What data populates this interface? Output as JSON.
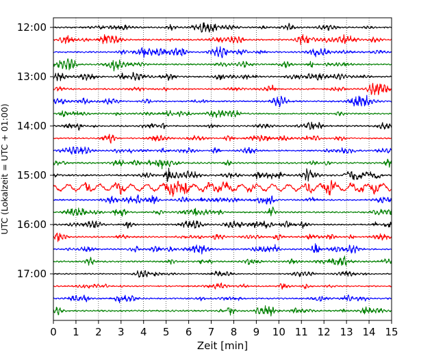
{
  "chart_data": {
    "type": "line",
    "title": "",
    "xlabel": "Zeit  [min]",
    "ylabel": "UTC (Lokalzeit = UTC + 01:00)",
    "xlim": [
      0,
      15
    ],
    "x_ticks": [
      0,
      1,
      2,
      3,
      4,
      5,
      6,
      7,
      8,
      9,
      10,
      11,
      12,
      13,
      14,
      15
    ],
    "y_ticks": [
      "12:00",
      "13:00",
      "14:00",
      "15:00",
      "16:00",
      "17:00"
    ],
    "grid_x": true,
    "trace_interval_minutes": 15,
    "first_trace": "12:00",
    "last_trace": "17:45",
    "trace_colors": [
      "#000000",
      "#ff0000",
      "#0000ff",
      "#008000"
    ],
    "series": [
      {
        "start": "12:00",
        "color": "#000000",
        "amplitude": 1.0
      },
      {
        "start": "12:15",
        "color": "#ff0000",
        "amplitude": 1.0
      },
      {
        "start": "12:30",
        "color": "#0000ff",
        "amplitude": 1.0
      },
      {
        "start": "12:45",
        "color": "#008000",
        "amplitude": 1.0
      },
      {
        "start": "13:00",
        "color": "#000000",
        "amplitude": 1.0
      },
      {
        "start": "13:15",
        "color": "#ff0000",
        "amplitude": 1.0
      },
      {
        "start": "13:30",
        "color": "#0000ff",
        "amplitude": 1.0
      },
      {
        "start": "13:45",
        "color": "#008000",
        "amplitude": 1.0
      },
      {
        "start": "14:00",
        "color": "#000000",
        "amplitude": 1.0
      },
      {
        "start": "14:15",
        "color": "#ff0000",
        "amplitude": 0.9
      },
      {
        "start": "14:30",
        "color": "#0000ff",
        "amplitude": 0.9
      },
      {
        "start": "14:45",
        "color": "#008000",
        "amplitude": 1.1
      },
      {
        "start": "15:00",
        "color": "#000000",
        "amplitude": 1.2
      },
      {
        "start": "15:15",
        "color": "#ff0000",
        "amplitude": 1.6
      },
      {
        "start": "15:30",
        "color": "#0000ff",
        "amplitude": 1.0
      },
      {
        "start": "15:45",
        "color": "#008000",
        "amplitude": 1.0
      },
      {
        "start": "16:00",
        "color": "#000000",
        "amplitude": 1.0
      },
      {
        "start": "16:15",
        "color": "#ff0000",
        "amplitude": 1.0
      },
      {
        "start": "16:30",
        "color": "#0000ff",
        "amplitude": 1.0
      },
      {
        "start": "16:45",
        "color": "#008000",
        "amplitude": 1.1
      },
      {
        "start": "17:00",
        "color": "#000000",
        "amplitude": 0.8
      },
      {
        "start": "17:15",
        "color": "#ff0000",
        "amplitude": 0.9
      },
      {
        "start": "17:30",
        "color": "#0000ff",
        "amplitude": 1.0
      },
      {
        "start": "17:45",
        "color": "#008000",
        "amplitude": 1.1
      }
    ]
  }
}
